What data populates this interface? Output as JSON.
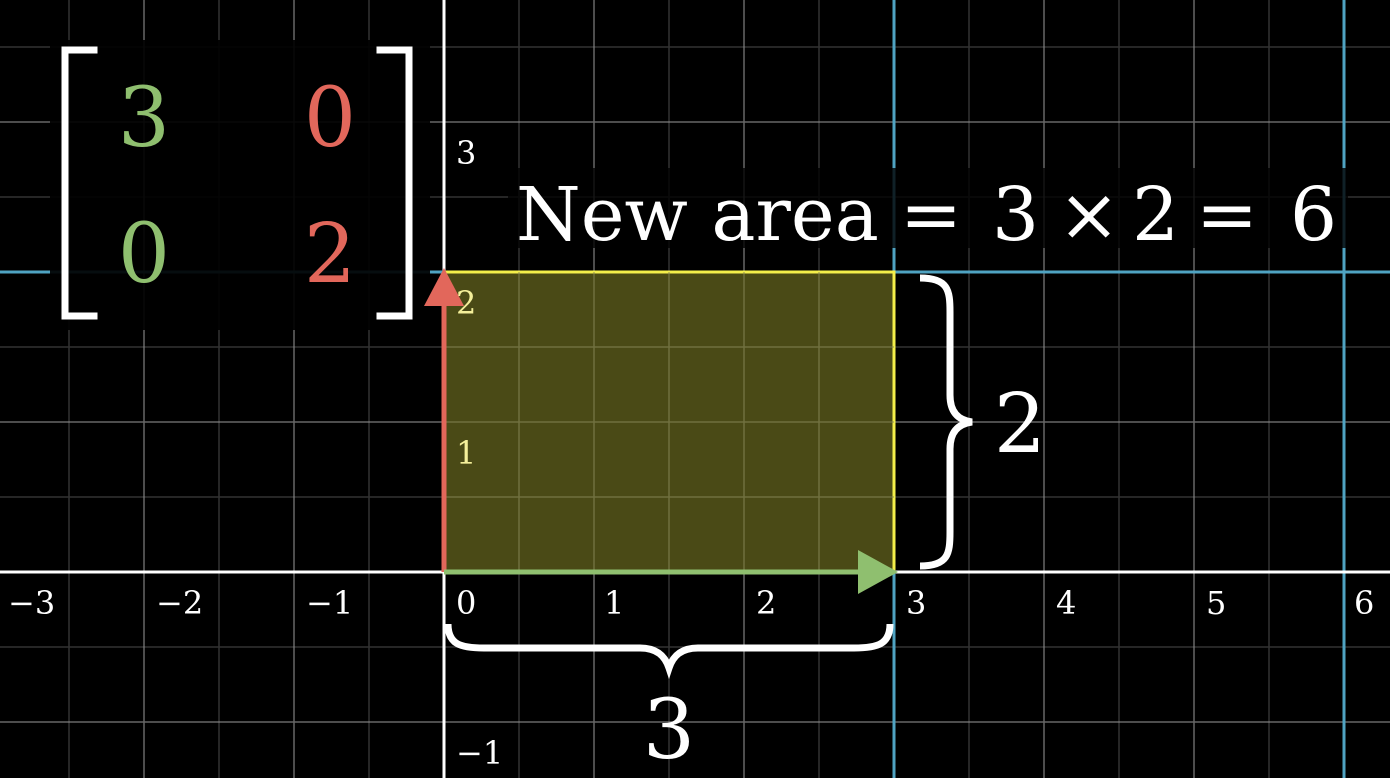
{
  "matrix": {
    "entries": [
      [
        "3",
        "0"
      ],
      [
        "0",
        "2"
      ]
    ],
    "column_colors": [
      "#8fbf6f",
      "#e2675b"
    ]
  },
  "equation": {
    "label": "New area",
    "equals_1": "=",
    "factor_a": "3",
    "times": "×",
    "factor_b": "2",
    "equals_2": "=",
    "result": "6"
  },
  "dimensions": {
    "width_label": "3",
    "height_label": "2"
  },
  "grid": {
    "x_ticks": [
      "−3",
      "−2",
      "−1",
      "0",
      "1",
      "2",
      "3",
      "4",
      "5",
      "6"
    ],
    "y_ticks": [
      "3",
      "2",
      "1",
      "−1"
    ],
    "colors": {
      "background": "#000000",
      "fine_grid": "#3a3a3a",
      "major_grid": "#8a8a8a",
      "axis": "#ffffff",
      "transformed_grid": "#4fa3c2",
      "area_fill": "#4a4a16",
      "area_border": "#f4ef4a",
      "vector_i": "#8fbf6f",
      "vector_j": "#e2675b",
      "text": "#ffffff"
    }
  },
  "vectors": {
    "i_hat": [
      3,
      0
    ],
    "j_hat": [
      0,
      2
    ]
  }
}
